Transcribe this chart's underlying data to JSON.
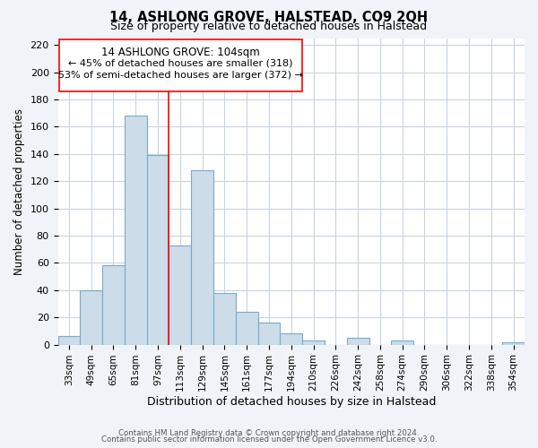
{
  "title": "14, ASHLONG GROVE, HALSTEAD, CO9 2QH",
  "subtitle": "Size of property relative to detached houses in Halstead",
  "xlabel": "Distribution of detached houses by size in Halstead",
  "ylabel": "Number of detached properties",
  "bar_color": "#ccdce8",
  "bar_edge_color": "#7aaac8",
  "categories": [
    "33sqm",
    "49sqm",
    "65sqm",
    "81sqm",
    "97sqm",
    "113sqm",
    "129sqm",
    "145sqm",
    "161sqm",
    "177sqm",
    "194sqm",
    "210sqm",
    "226sqm",
    "242sqm",
    "258sqm",
    "274sqm",
    "290sqm",
    "306sqm",
    "322sqm",
    "338sqm",
    "354sqm"
  ],
  "values": [
    6,
    40,
    58,
    168,
    139,
    73,
    128,
    38,
    24,
    16,
    8,
    3,
    0,
    5,
    0,
    3,
    0,
    0,
    0,
    0,
    2
  ],
  "ylim": [
    0,
    225
  ],
  "yticks": [
    0,
    20,
    40,
    60,
    80,
    100,
    120,
    140,
    160,
    180,
    200,
    220
  ],
  "vline_x_index": 4.5,
  "annotation_title": "14 ASHLONG GROVE: 104sqm",
  "annotation_line1": "← 45% of detached houses are smaller (318)",
  "annotation_line2": "53% of semi-detached houses are larger (372) →",
  "footer1": "Contains HM Land Registry data © Crown copyright and database right 2024.",
  "footer2": "Contains public sector information licensed under the Open Government Licence v3.0.",
  "background_color": "#f0f4f8",
  "plot_background": "#ffffff",
  "grid_color": "#c8d4e0"
}
